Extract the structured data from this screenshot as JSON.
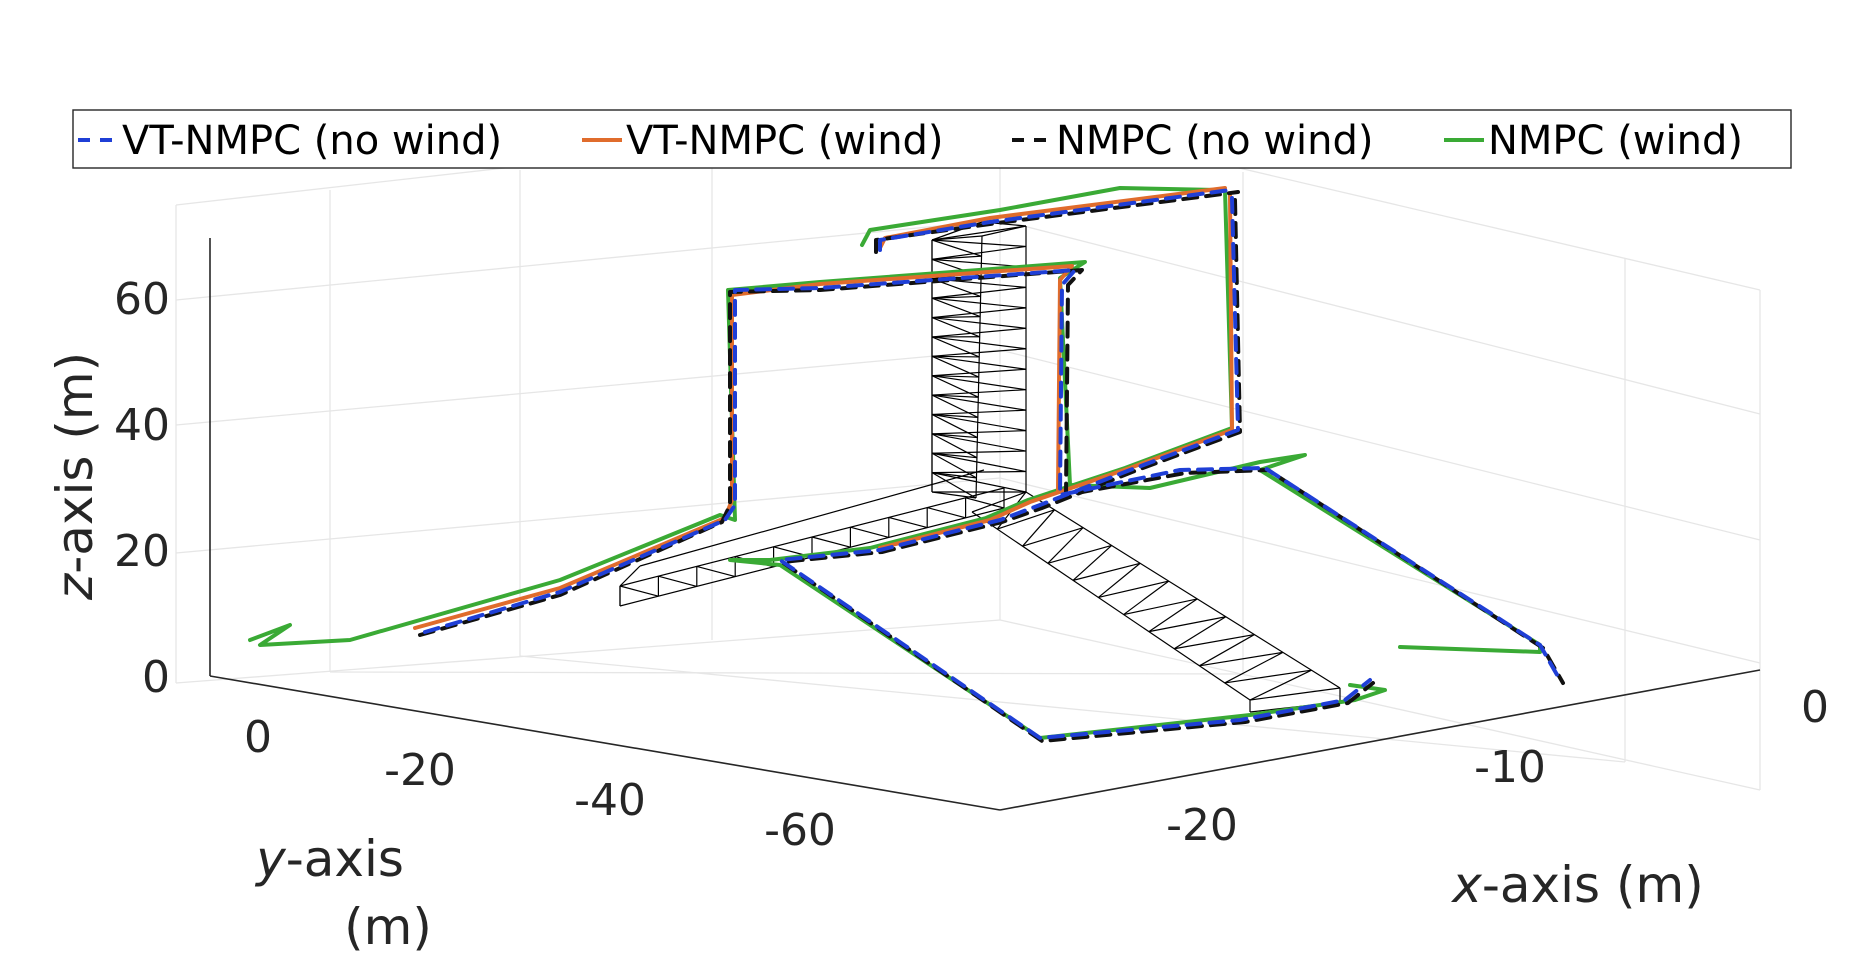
{
  "chart_data": {
    "type": "line",
    "title": "",
    "xlabel_var": "x",
    "xlabel_rest": "-axis (m)",
    "ylabel_var": "y",
    "ylabel_rest": "-axis",
    "ylabel_unit": "(m)",
    "zlabel_var": "z",
    "zlabel_rest": "-axis (m)",
    "x_ticks": [
      "-20",
      "-10",
      "0"
    ],
    "y_ticks": [
      "0",
      "-20",
      "-40",
      "-60"
    ],
    "z_ticks": [
      "0",
      "20",
      "40",
      "60"
    ],
    "xlim": [
      -27,
      0
    ],
    "ylim": [
      -75,
      5
    ],
    "zlim": [
      0,
      70
    ],
    "grid": true,
    "legend_position": "top",
    "legend": [
      {
        "name": "VT-NMPC (no wind)",
        "color": "#1f3fd6",
        "style": "dashed"
      },
      {
        "name": "VT-NMPC (wind)",
        "color": "#e06c2c",
        "style": "solid"
      },
      {
        "name": "NMPC (no wind)",
        "color": "#111111",
        "style": "dashed"
      },
      {
        "name": "NMPC (wind)",
        "color": "#3aaa35",
        "style": "solid"
      }
    ]
  }
}
